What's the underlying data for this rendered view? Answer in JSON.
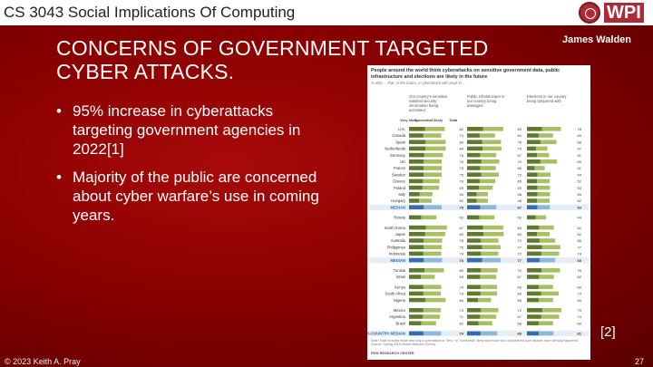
{
  "header": {
    "course_title": "CS 3043 Social Implications Of Computing",
    "logo_text": "WPI"
  },
  "slide": {
    "title": "CONCERNS OF GOVERNMENT TARGETED CYBER ATTACKS.",
    "author": "James Walden",
    "bullets": [
      "95% increase in cyberattacks targeting government agencies in 2022[1]",
      "Majority of the public are concerned about cyber warfare’s use in coming years."
    ],
    "reference_marker": "[2]"
  },
  "footer": {
    "copyright": "© 2023 Keith A. Pray",
    "page_number": "27"
  },
  "colors": {
    "background": "#8a0000",
    "bar_dark": "#5f7a2c",
    "bar_light": "#a9bf63",
    "median_dark": "#2f6fae",
    "median_light": "#8fb7dc"
  },
  "chart_data": {
    "type": "bar",
    "title": "People around the world think cyberattacks on sensitive government data, public infrastructure and elections are likely in the future",
    "subtitle": "% who ... that, in the future, a cyberattack will result in ...",
    "panels": [
      "Our country’s sensitive national security information being accessed",
      "Public infrastructure in our country being damaged",
      "Elections in our country being tampered with"
    ],
    "legend": [
      "Very likely",
      "Somewhat likely",
      "Total"
    ],
    "categories": [
      "U.S.",
      "Canada",
      "Spain",
      "Netherlands",
      "Germany",
      "UK",
      "France",
      "Sweden",
      "Greece",
      "Poland",
      "Italy",
      "Hungary",
      "MEDIAN",
      "Russia",
      "South Korea",
      "Japan",
      "Australia",
      "Philippines",
      "Indonesia",
      "MEDIAN",
      "Tunisia",
      "Israel",
      "Kenya",
      "South Africa",
      "Nigeria",
      "Mexico",
      "Argentina",
      "Brazil",
      "26-COUNTRY MEDIAN"
    ],
    "series": [
      {
        "name": "Our country’s sensitive national security information being accessed",
        "values": [
          82,
          74,
          84,
          84,
          78,
          75,
          75,
          75,
          70,
          69,
          54,
          52,
          75,
          63,
          87,
          83,
          76,
          75,
          74,
          76,
          80,
          59,
          74,
          73,
          84,
          73,
          71,
          62,
          74
        ]
      },
      {
        "name": "Public infrastructure in our country being damaged",
        "values": [
          83,
          64,
          78,
          79,
          67,
          74,
          66,
          73,
          65,
          59,
          48,
          48,
          67,
          63,
          83,
          84,
          72,
          77,
          72,
          77,
          70,
          67,
          69,
          69,
          55,
          72,
          67,
          58,
          69
        ]
      },
      {
        "name": "Elections in our country being tampered with",
        "values": [
          78,
          60,
          68,
          47,
          51,
          69,
          41,
          54,
          52,
          53,
          53,
          52,
          53,
          44,
          62,
          52,
          65,
          77,
          74,
          65,
          76,
          62,
          60,
          73,
          60,
          79,
          74,
          60,
          61
        ]
      }
    ],
    "xlim": [
      0,
      100
    ],
    "footnote": "Note: Total includes those who say a cyberattack is \"very\" or \"somewhat\" likely and those who volunteered such attacks have already happened. Source: Spring 2018 Global Attitudes Survey.",
    "source": "PEW RESEARCH CENTER"
  }
}
